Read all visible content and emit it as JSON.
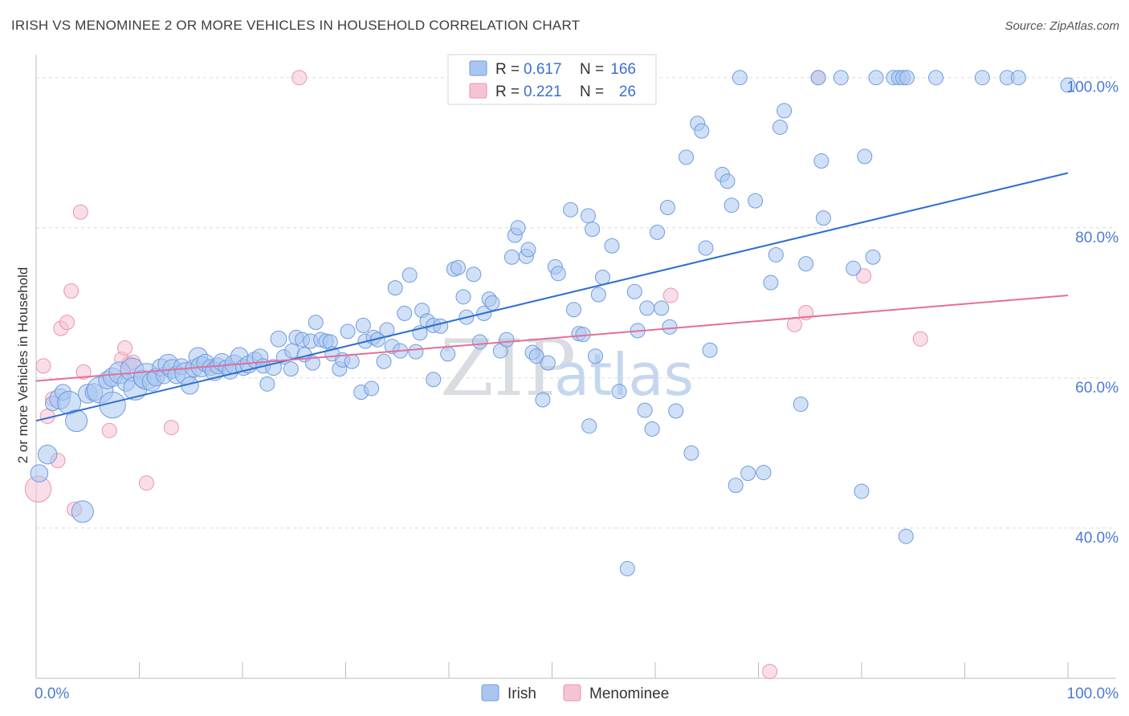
{
  "title": "IRISH VS MENOMINEE 2 OR MORE VEHICLES IN HOUSEHOLD CORRELATION CHART",
  "source": "Source: ZipAtlas.com",
  "watermark": {
    "zip": "ZIP",
    "atlas": "atlas"
  },
  "colors": {
    "irish_fill": "#a9c6f0",
    "irish_stroke": "#6f9be0",
    "irish_line": "#2e6fd0",
    "menominee_fill": "#f6c3d3",
    "menominee_stroke": "#ea93af",
    "menominee_line": "#e46f97",
    "grid": "#dcdcdc",
    "axis_label": "#4a7bd0"
  },
  "legend": {
    "rows": [
      {
        "series": "Irish",
        "r_label": "R =",
        "r_value": "0.617",
        "n_label": "N =",
        "n_value": "166"
      },
      {
        "series": "Menominee",
        "r_label": "R =",
        "r_value": "0.221",
        "n_label": "N =",
        "n_value": "26"
      }
    ]
  },
  "chart_data": {
    "type": "scatter",
    "title": "IRISH VS MENOMINEE 2 OR MORE VEHICLES IN HOUSEHOLD CORRELATION CHART",
    "xlabel": "",
    "ylabel": "2 or more Vehicles in Household",
    "xlim": [
      0,
      100
    ],
    "ylim": [
      20,
      102
    ],
    "x_tick_labels": [
      {
        "value": 0,
        "label": "0.0%"
      },
      {
        "value": 100,
        "label": "100.0%"
      }
    ],
    "y_tick_labels": [
      {
        "value": 40,
        "label": "40.0%"
      },
      {
        "value": 60,
        "label": "60.0%"
      },
      {
        "value": 80,
        "label": "80.0%"
      },
      {
        "value": 100,
        "label": "100.0%"
      }
    ],
    "grid": true,
    "legend_position": "top-center",
    "series": [
      {
        "name": "Irish",
        "r": 0.617,
        "n": 166,
        "trend": {
          "x": [
            0,
            100
          ],
          "y": [
            54.3,
            87.3
          ]
        },
        "points": [
          [
            0.3,
            47.3,
            1.2
          ],
          [
            1.1,
            49.8,
            1.3
          ],
          [
            1.6,
            56.6,
            1.0
          ],
          [
            2.3,
            57.2,
            1.4
          ],
          [
            2.6,
            58.1,
            1.1
          ],
          [
            3.2,
            56.7,
            1.6
          ],
          [
            3.9,
            54.3,
            1.5
          ],
          [
            4.5,
            42.2,
            1.5
          ],
          [
            5.0,
            57.9,
            1.3
          ],
          [
            5.6,
            58.1,
            1.2
          ],
          [
            6.2,
            58.4,
            1.8
          ],
          [
            6.9,
            59.7,
            1.2
          ],
          [
            7.4,
            60.1,
            1.3
          ],
          [
            7.4,
            56.4,
            1.8
          ],
          [
            8.1,
            60.7,
            1.5
          ],
          [
            8.7,
            59.4,
            1.2
          ],
          [
            9.3,
            61.1,
            1.6
          ],
          [
            9.6,
            58.6,
            1.6
          ],
          [
            10.3,
            59.9,
            1.2
          ],
          [
            10.7,
            60.2,
            1.8
          ],
          [
            11.2,
            59.5,
            1.3
          ],
          [
            11.6,
            60.1,
            1.2
          ],
          [
            12.1,
            61.4,
            1.2
          ],
          [
            12.4,
            60.3,
            1.1
          ],
          [
            12.8,
            61.8,
            1.4
          ],
          [
            13.2,
            61.2,
            1.3
          ],
          [
            13.6,
            60.4,
            1.2
          ],
          [
            14.1,
            61.5,
            1.1
          ],
          [
            14.5,
            60.6,
            1.5
          ],
          [
            14.9,
            59.0,
            1.2
          ],
          [
            15.3,
            61.3,
            1.2
          ],
          [
            15.7,
            62.8,
            1.3
          ],
          [
            16.0,
            61.5,
            1.4
          ],
          [
            16.4,
            62.0,
            1.2
          ],
          [
            16.9,
            61.4,
            1.1
          ],
          [
            17.3,
            60.9,
            1.3
          ],
          [
            17.6,
            61.6,
            1.1
          ],
          [
            18.0,
            62.1,
            1.2
          ],
          [
            18.4,
            61.4,
            1.0
          ],
          [
            18.8,
            60.9,
            1.1
          ],
          [
            19.2,
            61.8,
            1.3
          ],
          [
            19.7,
            62.9,
            1.2
          ],
          [
            20.1,
            61.4,
            1.1
          ],
          [
            20.6,
            61.8,
            1.2
          ],
          [
            21.2,
            62.4,
            1.1
          ],
          [
            21.7,
            62.8,
            1.1
          ],
          [
            22.0,
            61.6,
            1.0
          ],
          [
            22.4,
            59.2,
            1.0
          ],
          [
            23.0,
            61.4,
            1.1
          ],
          [
            23.5,
            65.2,
            1.1
          ],
          [
            24.0,
            62.8,
            1.0
          ],
          [
            24.7,
            61.2,
            1.0
          ],
          [
            24.8,
            63.6,
            1.0
          ],
          [
            25.2,
            65.4,
            1.0
          ],
          [
            25.8,
            65.1,
            1.0
          ],
          [
            26.0,
            63.1,
            1.0
          ],
          [
            26.6,
            64.9,
            1.0
          ],
          [
            26.8,
            62.0,
            1.0
          ],
          [
            27.1,
            67.4,
            1.0
          ],
          [
            27.6,
            65.1,
            1.0
          ],
          [
            28.1,
            64.9,
            1.0
          ],
          [
            28.5,
            64.8,
            1.0
          ],
          [
            28.7,
            63.2,
            1.0
          ],
          [
            29.4,
            61.2,
            1.0
          ],
          [
            29.7,
            62.4,
            1.0
          ],
          [
            30.2,
            66.2,
            1.0
          ],
          [
            30.6,
            62.2,
            1.0
          ],
          [
            31.5,
            58.1,
            1.0
          ],
          [
            31.7,
            67.0,
            1.0
          ],
          [
            31.9,
            64.9,
            1.0
          ],
          [
            32.5,
            58.6,
            1.0
          ],
          [
            32.7,
            65.4,
            1.0
          ],
          [
            33.1,
            65.1,
            1.0
          ],
          [
            33.7,
            62.2,
            1.0
          ],
          [
            34.0,
            66.4,
            1.0
          ],
          [
            34.5,
            64.2,
            1.0
          ],
          [
            34.8,
            72.0,
            1.0
          ],
          [
            35.3,
            63.6,
            1.0
          ],
          [
            35.7,
            68.6,
            1.0
          ],
          [
            36.2,
            73.7,
            1.0
          ],
          [
            36.8,
            63.5,
            1.0
          ],
          [
            37.2,
            66.0,
            1.0
          ],
          [
            37.4,
            69.0,
            1.0
          ],
          [
            37.9,
            67.6,
            1.0
          ],
          [
            38.5,
            59.8,
            1.0
          ],
          [
            38.5,
            67.0,
            1.0
          ],
          [
            39.2,
            66.9,
            1.0
          ],
          [
            39.9,
            63.2,
            1.0
          ],
          [
            40.5,
            74.5,
            1.0
          ],
          [
            40.9,
            74.7,
            1.0
          ],
          [
            41.4,
            70.8,
            1.0
          ],
          [
            41.7,
            68.1,
            1.0
          ],
          [
            42.4,
            73.8,
            1.0
          ],
          [
            43.0,
            64.8,
            1.0
          ],
          [
            43.4,
            68.6,
            1.0
          ],
          [
            43.9,
            70.5,
            1.0
          ],
          [
            44.2,
            70.0,
            1.0
          ],
          [
            45.0,
            63.6,
            1.0
          ],
          [
            45.6,
            65.1,
            1.0
          ],
          [
            46.1,
            76.1,
            1.0
          ],
          [
            46.4,
            79.0,
            1.0
          ],
          [
            46.7,
            80.0,
            1.0
          ],
          [
            47.5,
            76.2,
            1.0
          ],
          [
            47.7,
            77.1,
            1.0
          ],
          [
            48.1,
            63.4,
            1.0
          ],
          [
            48.5,
            62.9,
            1.0
          ],
          [
            49.1,
            57.1,
            1.0
          ],
          [
            49.6,
            62.0,
            1.0
          ],
          [
            50.3,
            74.8,
            1.0
          ],
          [
            50.6,
            73.9,
            1.0
          ],
          [
            51.8,
            82.4,
            1.0
          ],
          [
            52.1,
            69.1,
            1.0
          ],
          [
            52.6,
            65.9,
            1.0
          ],
          [
            53.0,
            65.8,
            1.0
          ],
          [
            53.5,
            81.6,
            1.0
          ],
          [
            53.6,
            53.6,
            1.0
          ],
          [
            53.9,
            79.8,
            1.0
          ],
          [
            54.2,
            62.9,
            1.0
          ],
          [
            54.5,
            71.1,
            1.0
          ],
          [
            54.9,
            73.4,
            1.0
          ],
          [
            55.8,
            77.6,
            1.0
          ],
          [
            56.5,
            58.2,
            1.0
          ],
          [
            57.3,
            34.6,
            1.0
          ],
          [
            58.0,
            71.5,
            1.0
          ],
          [
            58.3,
            66.3,
            1.0
          ],
          [
            59.0,
            55.7,
            1.0
          ],
          [
            59.2,
            69.3,
            1.0
          ],
          [
            59.7,
            53.2,
            1.0
          ],
          [
            60.2,
            79.4,
            1.0
          ],
          [
            60.6,
            69.3,
            1.0
          ],
          [
            61.2,
            82.7,
            1.0
          ],
          [
            61.4,
            66.8,
            1.0
          ],
          [
            62.0,
            55.6,
            1.0
          ],
          [
            63.0,
            89.4,
            1.0
          ],
          [
            63.5,
            50.0,
            1.0
          ],
          [
            64.1,
            93.9,
            1.0
          ],
          [
            64.5,
            92.9,
            1.0
          ],
          [
            64.9,
            77.3,
            1.0
          ],
          [
            65.3,
            63.7,
            1.0
          ],
          [
            66.5,
            87.1,
            1.0
          ],
          [
            67.0,
            86.2,
            1.0
          ],
          [
            67.4,
            83.0,
            1.0
          ],
          [
            67.8,
            45.7,
            1.0
          ],
          [
            68.2,
            100.0,
            1.0
          ],
          [
            69.0,
            47.3,
            1.0
          ],
          [
            69.7,
            83.6,
            1.0
          ],
          [
            70.5,
            47.4,
            1.0
          ],
          [
            71.2,
            72.7,
            1.0
          ],
          [
            71.7,
            76.4,
            1.0
          ],
          [
            72.1,
            93.4,
            1.0
          ],
          [
            72.5,
            95.6,
            1.0
          ],
          [
            74.1,
            56.5,
            1.0
          ],
          [
            74.6,
            75.2,
            1.0
          ],
          [
            75.8,
            100.0,
            1.0
          ],
          [
            76.1,
            88.9,
            1.0
          ],
          [
            76.3,
            81.3,
            1.0
          ],
          [
            78.0,
            100.0,
            1.0
          ],
          [
            79.2,
            74.6,
            1.0
          ],
          [
            80.0,
            44.9,
            1.0
          ],
          [
            80.3,
            89.5,
            1.0
          ],
          [
            81.1,
            76.1,
            1.0
          ],
          [
            81.4,
            100.0,
            1.0
          ],
          [
            83.1,
            100.0,
            1.0
          ],
          [
            83.6,
            100.0,
            1.0
          ],
          [
            84.0,
            100.0,
            1.0
          ],
          [
            84.3,
            38.9,
            1.0
          ],
          [
            84.4,
            100.0,
            1.0
          ],
          [
            87.2,
            100.0,
            1.0
          ],
          [
            91.7,
            100.0,
            1.0
          ],
          [
            94.1,
            100.0,
            1.0
          ],
          [
            95.2,
            100.0,
            1.0
          ],
          [
            100.0,
            99.0,
            1.0
          ]
        ]
      },
      {
        "name": "Menominee",
        "r": 0.221,
        "n": 26,
        "trend": {
          "x": [
            0,
            100
          ],
          "y": [
            59.6,
            71.0
          ]
        },
        "points": [
          [
            0.2,
            45.2,
            1.8
          ],
          [
            0.7,
            61.6,
            1.0
          ],
          [
            1.1,
            54.9,
            1.0
          ],
          [
            1.6,
            57.2,
            1.0
          ],
          [
            2.1,
            49.0,
            1.0
          ],
          [
            2.4,
            66.6,
            1.0
          ],
          [
            3.0,
            67.4,
            1.0
          ],
          [
            3.4,
            71.6,
            1.0
          ],
          [
            3.7,
            42.5,
            1.0
          ],
          [
            4.3,
            82.1,
            1.0
          ],
          [
            4.6,
            60.8,
            1.0
          ],
          [
            7.1,
            53.0,
            1.0
          ],
          [
            8.3,
            62.5,
            1.0
          ],
          [
            8.6,
            64.0,
            1.0
          ],
          [
            9.0,
            61.9,
            1.0
          ],
          [
            9.4,
            62.1,
            1.0
          ],
          [
            10.7,
            46.0,
            1.0
          ],
          [
            13.1,
            53.4,
            1.0
          ],
          [
            25.5,
            100.0,
            1.0
          ],
          [
            61.5,
            71.0,
            1.0
          ],
          [
            71.1,
            20.9,
            1.0
          ],
          [
            73.5,
            67.1,
            1.0
          ],
          [
            74.6,
            68.7,
            1.0
          ],
          [
            75.8,
            100.0,
            1.0
          ],
          [
            80.2,
            73.6,
            1.0
          ],
          [
            85.7,
            65.2,
            1.0
          ]
        ]
      }
    ]
  }
}
